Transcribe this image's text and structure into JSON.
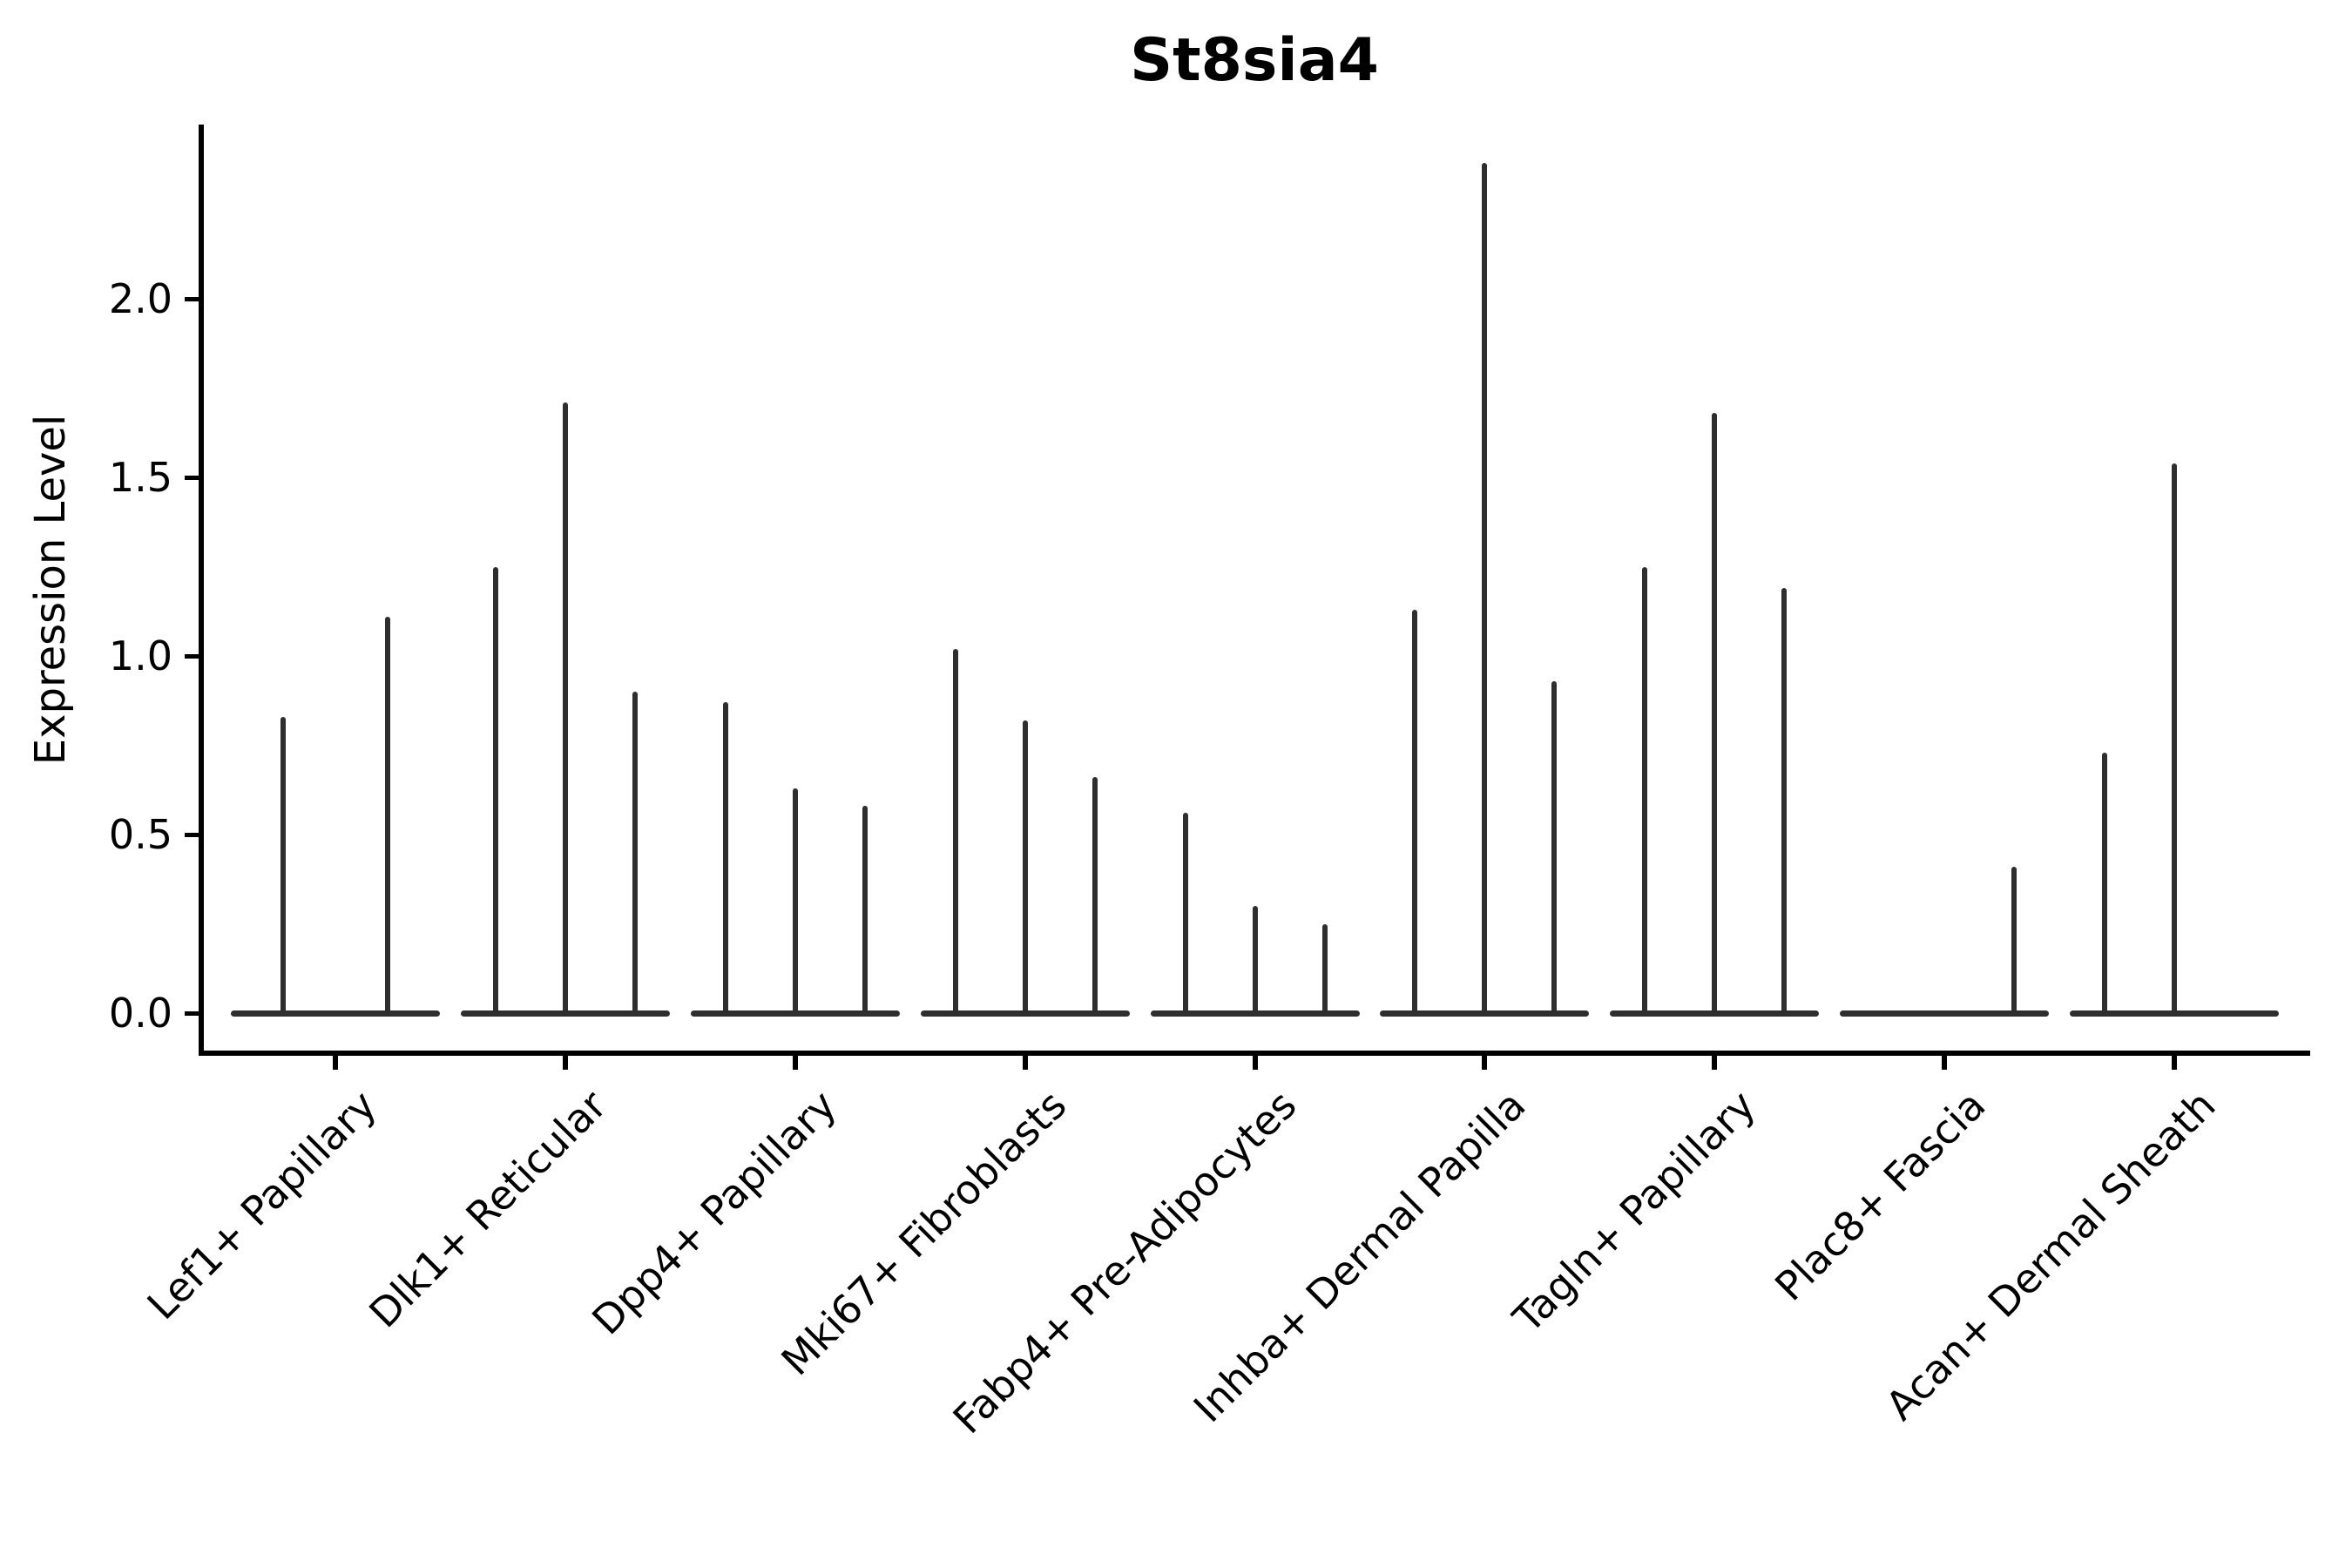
{
  "figure": {
    "title": "St8sia4",
    "y_axis": {
      "label": "Expression Level",
      "tick_labels": [
        "0.0",
        "0.5",
        "1.0",
        "1.5",
        "2.0"
      ]
    },
    "x_axis": {
      "tick_label_rotation_deg": 45
    }
  },
  "chart_data": {
    "type": "violin",
    "title": "St8sia4",
    "xlabel": "",
    "ylabel": "Expression Level",
    "ylim": [
      -0.11,
      2.49
    ],
    "yticks": [
      0,
      0.5,
      1,
      1.5,
      2
    ],
    "ytick_labels": [
      "0.0",
      "0.5",
      "1.0",
      "1.5",
      "2.0"
    ],
    "grid": false,
    "legend": false,
    "orientation": "vertical",
    "description": "Seurat-style stacked violin plot of St8sia4 expression; each cell-type category holds 2-3 zero-inflated violins rendered as a flat base at 0 with a thin spike rising to the maximum expression value. A value of 0 means an all-zero (flat) violin with no spike.",
    "categories": [
      "Lef1+ Papillary",
      "Dlk1+ Reticular",
      "Dpp4+ Papillary",
      "Mki67+ Fibroblasts",
      "Fabp4+ Pre-Adipocytes",
      "Inhba+ Dermal Papilla",
      "Tagln+ Papillary",
      "Plac8+ Fascia",
      "Acan+ Dermal Sheath"
    ],
    "series": [
      {
        "category": "Lef1+ Papillary",
        "violin_max_values": [
          0.83,
          1.11
        ]
      },
      {
        "category": "Dlk1+ Reticular",
        "violin_max_values": [
          1.25,
          1.71,
          0.9
        ]
      },
      {
        "category": "Dpp4+ Papillary",
        "violin_max_values": [
          0.87,
          0.63,
          0.58
        ]
      },
      {
        "category": "Mki67+ Fibroblasts",
        "violin_max_values": [
          1.02,
          0.82,
          0.66
        ]
      },
      {
        "category": "Fabp4+ Pre-Adipocytes",
        "violin_max_values": [
          0.56,
          0.3,
          0.25
        ]
      },
      {
        "category": "Inhba+ Dermal Papilla",
        "violin_max_values": [
          1.13,
          2.38,
          0.93
        ]
      },
      {
        "category": "Tagln+ Papillary",
        "violin_max_values": [
          1.25,
          1.68,
          1.19
        ]
      },
      {
        "category": "Plac8+ Fascia",
        "violin_max_values": [
          0,
          0,
          0.41
        ]
      },
      {
        "category": "Acan+ Dermal Sheath",
        "violin_max_values": [
          0.73,
          1.54,
          0
        ]
      }
    ],
    "violin_baseline_value": 0,
    "colors": {
      "violin": "#2e2e2e",
      "axis": "#000000",
      "text": "#000000",
      "background": "#ffffff"
    }
  }
}
